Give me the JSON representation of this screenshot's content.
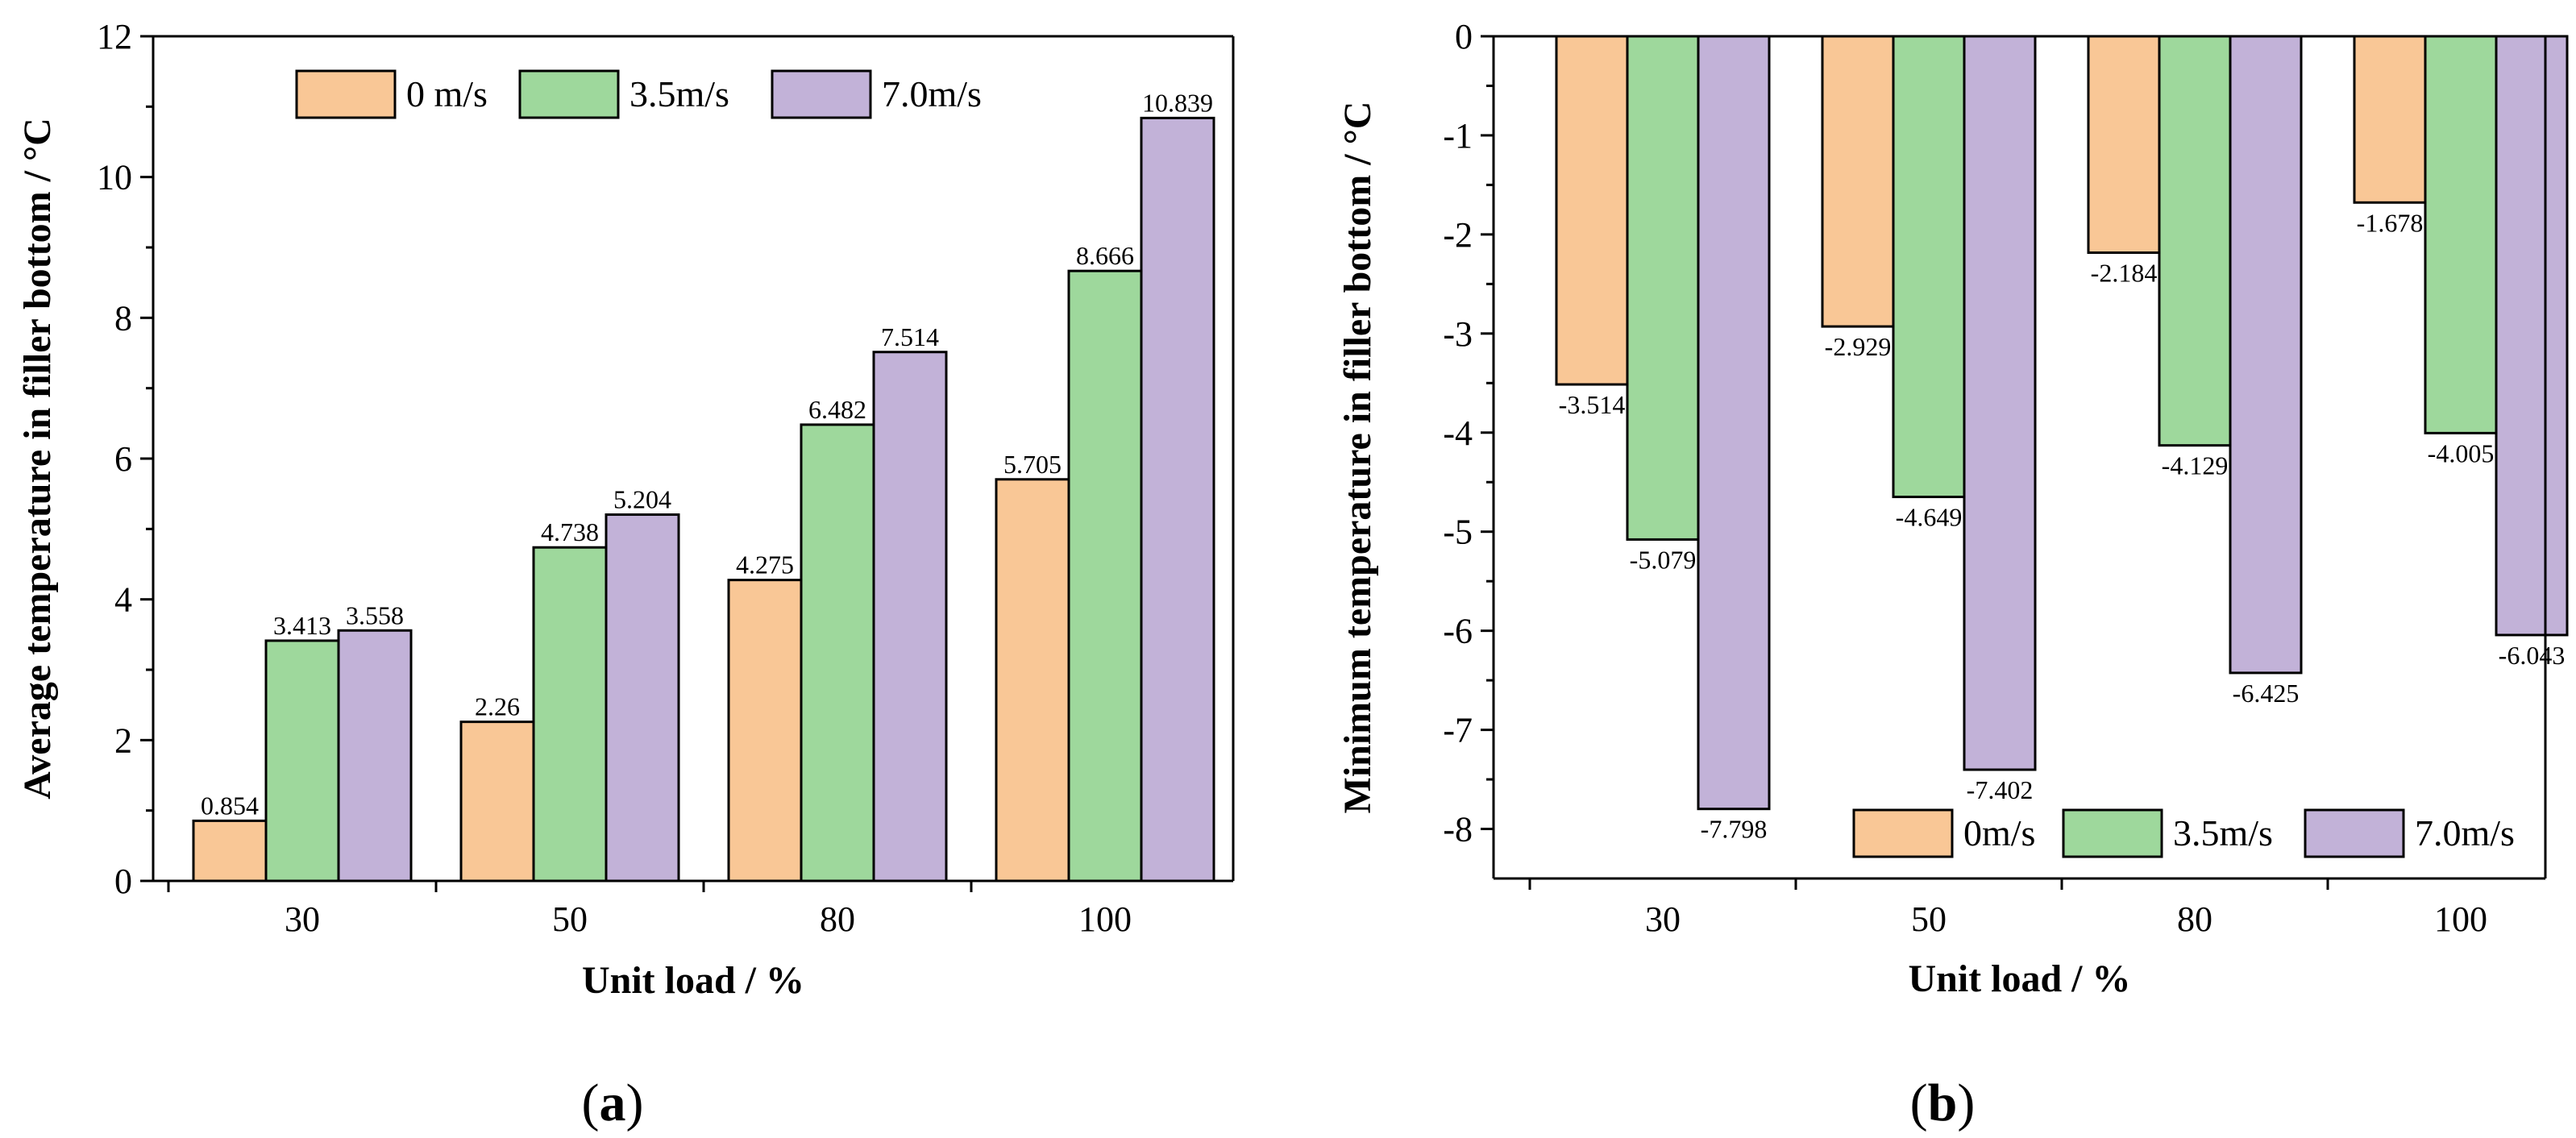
{
  "chart_data": [
    {
      "type": "bar",
      "panel_label": "a",
      "categories": [
        "30",
        "50",
        "80",
        "100"
      ],
      "series": [
        {
          "name": "0 m/s",
          "color": "#f9c796",
          "values": [
            0.854,
            2.26,
            4.275,
            5.705
          ]
        },
        {
          "name": "3.5m/s",
          "color": "#9ed89c",
          "values": [
            3.413,
            4.738,
            6.482,
            8.666
          ]
        },
        {
          "name": "7.0m/s",
          "color": "#c2b2d8",
          "values": [
            3.558,
            5.204,
            7.514,
            10.839
          ]
        }
      ],
      "xlabel": "Unit load / %",
      "ylabel": "Average temperature in filler bottom / °C",
      "ylim": [
        0,
        12
      ],
      "yticks": [
        0,
        2,
        4,
        6,
        8,
        10,
        12
      ],
      "legend": "top-center"
    },
    {
      "type": "bar",
      "panel_label": "b",
      "categories": [
        "30",
        "50",
        "80",
        "100"
      ],
      "series": [
        {
          "name": "0m/s",
          "color": "#f9c796",
          "values": [
            -3.514,
            -2.929,
            -2.184,
            -1.678
          ]
        },
        {
          "name": "3.5m/s",
          "color": "#9ed89c",
          "values": [
            -5.079,
            -4.649,
            -4.129,
            -4.005
          ]
        },
        {
          "name": "7.0m/s",
          "color": "#c2b2d8",
          "values": [
            -7.798,
            -7.402,
            -6.425,
            -6.043
          ]
        }
      ],
      "xlabel": "Unit load / %",
      "ylabel": "Minimum temperature in filler bottom / °C",
      "ylim": [
        -8.5,
        0
      ],
      "yticks": [
        0,
        -1,
        -2,
        -3,
        -4,
        -5,
        -6,
        -7,
        -8
      ],
      "legend": "bottom-right"
    }
  ]
}
